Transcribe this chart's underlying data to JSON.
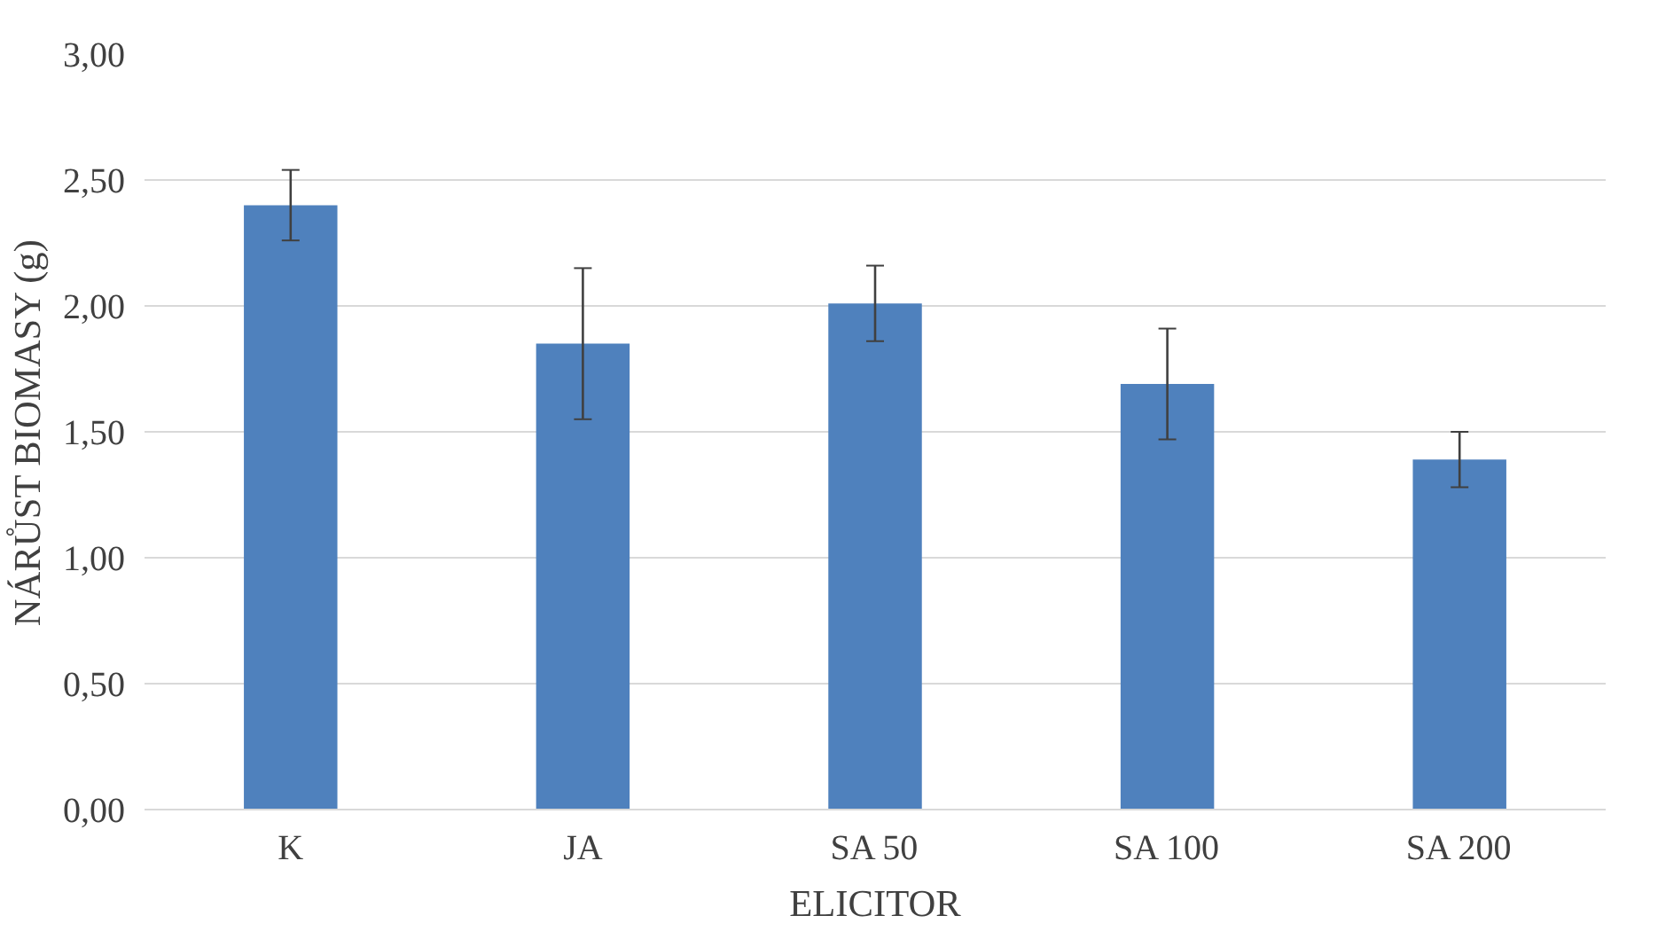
{
  "chart_data": {
    "type": "bar",
    "xlabel": "ELICITOR",
    "ylabel": "NÁRŮST BIOMASY (g)",
    "categories": [
      "K",
      "JA",
      "SA 50",
      "SA 100",
      "SA 200"
    ],
    "values": [
      2.4,
      1.85,
      2.01,
      1.69,
      1.39
    ],
    "errors": [
      0.14,
      0.3,
      0.15,
      0.22,
      0.11
    ],
    "color": "#4f81bd",
    "ylim": [
      0,
      3
    ],
    "yticks": [
      {
        "value": 0,
        "label": "0,00"
      },
      {
        "value": 0.5,
        "label": "0,50"
      },
      {
        "value": 1,
        "label": "1,00"
      },
      {
        "value": 1.5,
        "label": "1,50"
      },
      {
        "value": 2,
        "label": "2,00"
      },
      {
        "value": 2.5,
        "label": "2,50"
      },
      {
        "value": 3,
        "label": "3,00"
      }
    ],
    "grid": "y"
  }
}
